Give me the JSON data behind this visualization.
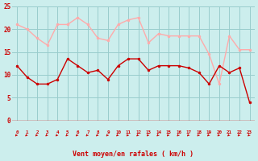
{
  "hours": [
    0,
    1,
    2,
    3,
    4,
    5,
    6,
    7,
    8,
    9,
    10,
    11,
    12,
    13,
    14,
    15,
    16,
    17,
    18,
    19,
    20,
    21,
    22,
    23
  ],
  "wind_avg": [
    12,
    9.5,
    8,
    8,
    9,
    13.5,
    12,
    10.5,
    11,
    9,
    12,
    13.5,
    13.5,
    11,
    12,
    12,
    12,
    11.5,
    10.5,
    8,
    12,
    10.5,
    11.5,
    4
  ],
  "wind_gust": [
    21,
    20,
    18,
    16.5,
    21,
    21,
    22.5,
    21,
    18,
    17.5,
    21,
    22,
    22.5,
    17,
    19,
    18.5,
    18.5,
    18.5,
    18.5,
    14.5,
    8,
    18.5,
    15.5,
    15.5
  ],
  "line_avg_color": "#cc0000",
  "line_gust_color": "#ffaaaa",
  "bg_color": "#cceeed",
  "grid_color": "#99cccc",
  "xlabel": "Vent moyen/en rafales ( km/h )",
  "xlabel_color": "#cc0000",
  "tick_color": "#cc0000",
  "ylim": [
    0,
    25
  ],
  "yticks": [
    0,
    5,
    10,
    15,
    20,
    25
  ]
}
